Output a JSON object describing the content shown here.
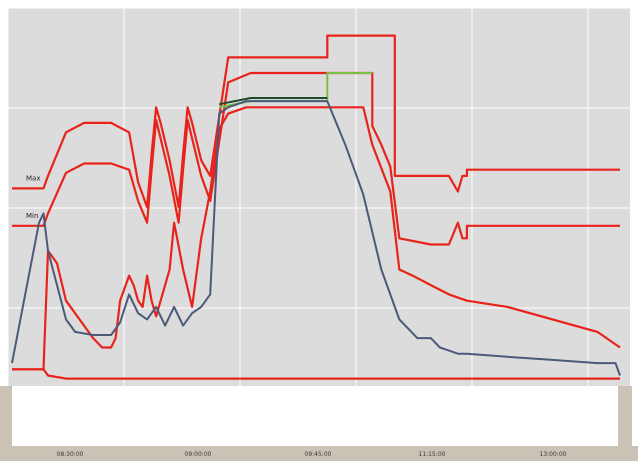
{
  "chart_data": {
    "type": "line",
    "title": "",
    "xlabel": "",
    "ylabel": "",
    "grid": true,
    "legend": "none",
    "x_ticks": [
      "08:30:00",
      "09:00:00",
      "09:45:00",
      "11:15:00",
      "13:00:00"
    ],
    "left_axis_label": "",
    "right_axis_label": "",
    "marker_labels": [
      {
        "text": "Max",
        "series": "red-upper"
      },
      {
        "text": "Min",
        "series": "red-middle"
      }
    ],
    "colors": {
      "background": "#dcdcdc",
      "grid": "#ffffff",
      "red": "#e8231c",
      "green": "#78c046",
      "dark_green": "#1f4a2a",
      "blue_gray": "#4a5a78",
      "bottom_strip": "#c9c2b5"
    },
    "series": [
      {
        "color": "red",
        "points": [
          [
            0,
            56
          ],
          [
            7,
            56
          ],
          [
            8,
            60
          ],
          [
            12,
            74
          ],
          [
            16,
            77
          ],
          [
            22,
            77
          ],
          [
            26,
            74
          ],
          [
            28,
            58
          ],
          [
            30,
            50
          ],
          [
            31,
            67
          ],
          [
            32,
            82
          ],
          [
            33,
            77
          ],
          [
            35,
            65
          ],
          [
            37,
            50
          ],
          [
            38,
            67
          ],
          [
            39,
            82
          ],
          [
            40,
            77
          ],
          [
            42,
            65
          ],
          [
            44,
            60
          ],
          [
            48,
            98
          ],
          [
            53,
            98
          ],
          [
            70,
            98
          ],
          [
            70,
            105
          ],
          [
            80,
            105
          ],
          [
            80,
            105
          ],
          [
            85,
            105
          ],
          [
            85,
            60
          ],
          [
            93,
            60
          ],
          [
            97,
            60
          ],
          [
            97,
            60
          ],
          [
            99,
            55
          ],
          [
            100,
            60
          ],
          [
            101,
            60
          ],
          [
            101,
            62
          ],
          [
            102,
            62
          ],
          [
            135,
            62
          ]
        ]
      },
      {
        "color": "red",
        "points": [
          [
            0,
            44
          ],
          [
            7,
            44
          ],
          [
            8,
            48
          ],
          [
            12,
            61
          ],
          [
            16,
            64
          ],
          [
            22,
            64
          ],
          [
            26,
            62
          ],
          [
            28,
            52
          ],
          [
            30,
            45
          ],
          [
            31,
            62
          ],
          [
            32,
            78
          ],
          [
            33,
            72
          ],
          [
            35,
            60
          ],
          [
            37,
            45
          ],
          [
            38,
            62
          ],
          [
            39,
            78
          ],
          [
            40,
            72
          ],
          [
            42,
            60
          ],
          [
            44,
            52
          ],
          [
            48,
            90
          ],
          [
            53,
            93
          ],
          [
            70,
            93
          ],
          [
            70,
            93
          ],
          [
            80,
            93
          ],
          [
            80,
            76
          ],
          [
            82,
            70
          ],
          [
            84,
            63
          ],
          [
            86,
            40
          ],
          [
            93,
            38
          ],
          [
            97,
            38
          ],
          [
            97,
            38
          ],
          [
            99,
            45
          ],
          [
            100,
            40
          ],
          [
            101,
            40
          ],
          [
            101,
            44
          ],
          [
            102,
            44
          ],
          [
            135,
            44
          ]
        ]
      },
      {
        "color": "red",
        "points": [
          [
            0,
            -2
          ],
          [
            7,
            -2
          ],
          [
            8,
            -4
          ],
          [
            12,
            -5
          ],
          [
            16,
            -5
          ],
          [
            22,
            -5
          ],
          [
            26,
            -5
          ],
          [
            28,
            -5
          ],
          [
            30,
            -5
          ],
          [
            31,
            -5
          ],
          [
            32,
            -5
          ],
          [
            33,
            -5
          ],
          [
            35,
            -5
          ],
          [
            37,
            -5
          ],
          [
            38,
            -5
          ],
          [
            39,
            -5
          ],
          [
            40,
            -5
          ],
          [
            42,
            -5
          ],
          [
            44,
            -5
          ],
          [
            48,
            -5
          ],
          [
            53,
            -5
          ],
          [
            70,
            -5
          ],
          [
            70,
            -5
          ],
          [
            80,
            -5
          ],
          [
            80,
            -5
          ],
          [
            85,
            -5
          ],
          [
            85,
            -5
          ],
          [
            93,
            -5
          ],
          [
            97,
            -5
          ],
          [
            97,
            -5
          ],
          [
            99,
            -5
          ],
          [
            100,
            -5
          ],
          [
            101,
            -5
          ],
          [
            101,
            -5
          ],
          [
            102,
            -5
          ],
          [
            135,
            -5
          ]
        ]
      },
      {
        "color": "red",
        "points": [
          [
            0,
            -2
          ],
          [
            7,
            -2
          ],
          [
            8,
            36
          ],
          [
            10,
            32
          ],
          [
            12,
            20
          ],
          [
            18,
            8
          ],
          [
            20,
            5
          ],
          [
            22,
            5
          ],
          [
            23,
            8
          ],
          [
            24,
            20
          ],
          [
            26,
            28
          ],
          [
            27,
            25
          ],
          [
            28,
            20
          ],
          [
            29,
            18
          ],
          [
            30,
            28
          ],
          [
            31,
            20
          ],
          [
            32,
            15
          ],
          [
            33,
            20
          ],
          [
            35,
            30
          ],
          [
            36,
            45
          ],
          [
            38,
            30
          ],
          [
            40,
            18
          ],
          [
            42,
            40
          ],
          [
            44,
            55
          ],
          [
            46,
            75
          ],
          [
            48,
            80
          ],
          [
            52,
            82
          ],
          [
            60,
            82
          ],
          [
            68,
            82
          ],
          [
            70,
            82
          ],
          [
            74,
            82
          ],
          [
            78,
            82
          ],
          [
            80,
            70
          ],
          [
            84,
            55
          ],
          [
            86,
            30
          ],
          [
            89,
            28
          ],
          [
            93,
            25
          ],
          [
            97,
            22
          ],
          [
            101,
            20
          ],
          [
            110,
            18
          ],
          [
            130,
            10
          ],
          [
            135,
            5
          ]
        ]
      },
      {
        "color": "green",
        "points": [
          [
            46,
            82
          ],
          [
            53,
            84
          ],
          [
            60,
            84
          ],
          [
            68,
            84
          ],
          [
            70,
            84
          ],
          [
            70,
            93
          ],
          [
            80,
            93
          ]
        ]
      },
      {
        "color": "dark_green",
        "points": [
          [
            46,
            83
          ],
          [
            53,
            85
          ],
          [
            60,
            85
          ],
          [
            68,
            85
          ],
          [
            70,
            85
          ]
        ]
      },
      {
        "color": "blue_gray",
        "points": [
          [
            0,
            0
          ],
          [
            6,
            45
          ],
          [
            7,
            48
          ],
          [
            8,
            36
          ],
          [
            10,
            25
          ],
          [
            12,
            14
          ],
          [
            14,
            10
          ],
          [
            18,
            9
          ],
          [
            20,
            9
          ],
          [
            22,
            9
          ],
          [
            24,
            13
          ],
          [
            26,
            22
          ],
          [
            28,
            16
          ],
          [
            30,
            14
          ],
          [
            32,
            18
          ],
          [
            34,
            12
          ],
          [
            36,
            18
          ],
          [
            38,
            12
          ],
          [
            40,
            16
          ],
          [
            42,
            18
          ],
          [
            44,
            22
          ],
          [
            46,
            80
          ],
          [
            48,
            82
          ],
          [
            52,
            84
          ],
          [
            60,
            84
          ],
          [
            68,
            84
          ],
          [
            70,
            84
          ],
          [
            74,
            70
          ],
          [
            78,
            54
          ],
          [
            80,
            42
          ],
          [
            82,
            30
          ],
          [
            84,
            22
          ],
          [
            86,
            14
          ],
          [
            88,
            11
          ],
          [
            90,
            8
          ],
          [
            93,
            8
          ],
          [
            95,
            5
          ],
          [
            97,
            4
          ],
          [
            99,
            3
          ],
          [
            101,
            3
          ],
          [
            110,
            2
          ],
          [
            120,
            1
          ],
          [
            130,
            0
          ],
          [
            134,
            0
          ],
          [
            135,
            -4
          ]
        ]
      }
    ]
  }
}
